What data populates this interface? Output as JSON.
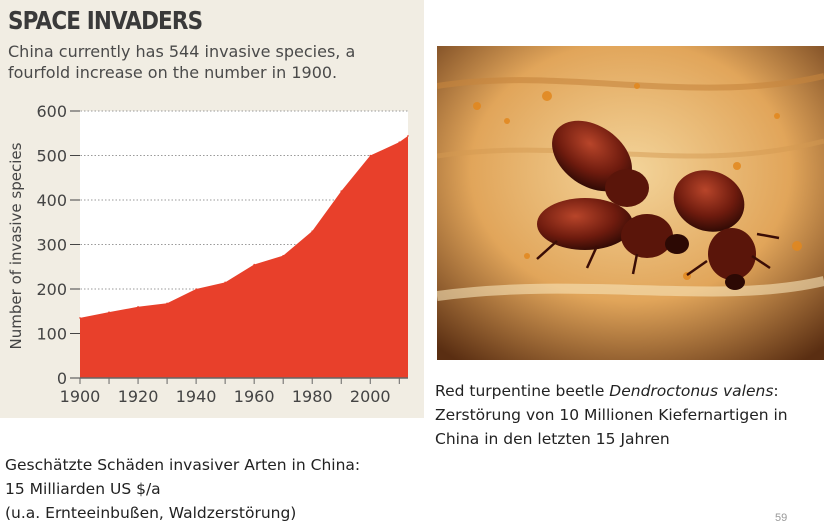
{
  "chart_data": {
    "type": "area",
    "title": "SPACE INVADERS",
    "subtitle": "China currently has 544 invasive species, a fourfold increase on the number in 1900.",
    "xlabel": "",
    "ylabel": "Number of invasive species",
    "x": [
      1900,
      1910,
      1920,
      1930,
      1940,
      1950,
      1960,
      1970,
      1980,
      1990,
      2000,
      2010,
      2013
    ],
    "values": [
      135,
      148,
      160,
      168,
      200,
      215,
      255,
      275,
      330,
      420,
      500,
      530,
      544
    ],
    "xlim": [
      1900,
      2013
    ],
    "ylim": [
      0,
      600
    ],
    "xticks": [
      1900,
      1920,
      1940,
      1960,
      1980,
      2000
    ],
    "yticks": [
      0,
      100,
      200,
      300,
      400,
      500,
      600
    ],
    "grid": true,
    "colors": {
      "fill": "#e8402b",
      "plot_bg": "#ffffff",
      "panel_bg": "#f1ede3",
      "grid": "#9a9a9a",
      "text": "#444444"
    }
  },
  "photo": {
    "icon": "beetle-photo",
    "caption_line1_prefix": "Red turpentine beetle ",
    "caption_species": "Dendroctonus valens",
    "caption_line1_suffix": ":",
    "caption_line2": "Zerstörung von 10 Millionen Kiefernartigen in",
    "caption_line3": "China in den letzten 15 Jahren"
  },
  "damage": {
    "line1": "Geschätzte Schäden invasiver Arten in China:",
    "line2": "15 Milliarden US $/a",
    "line3": "(u.a. Ernteeinbußen, Waldzerstörung)"
  },
  "slide_number": "59"
}
